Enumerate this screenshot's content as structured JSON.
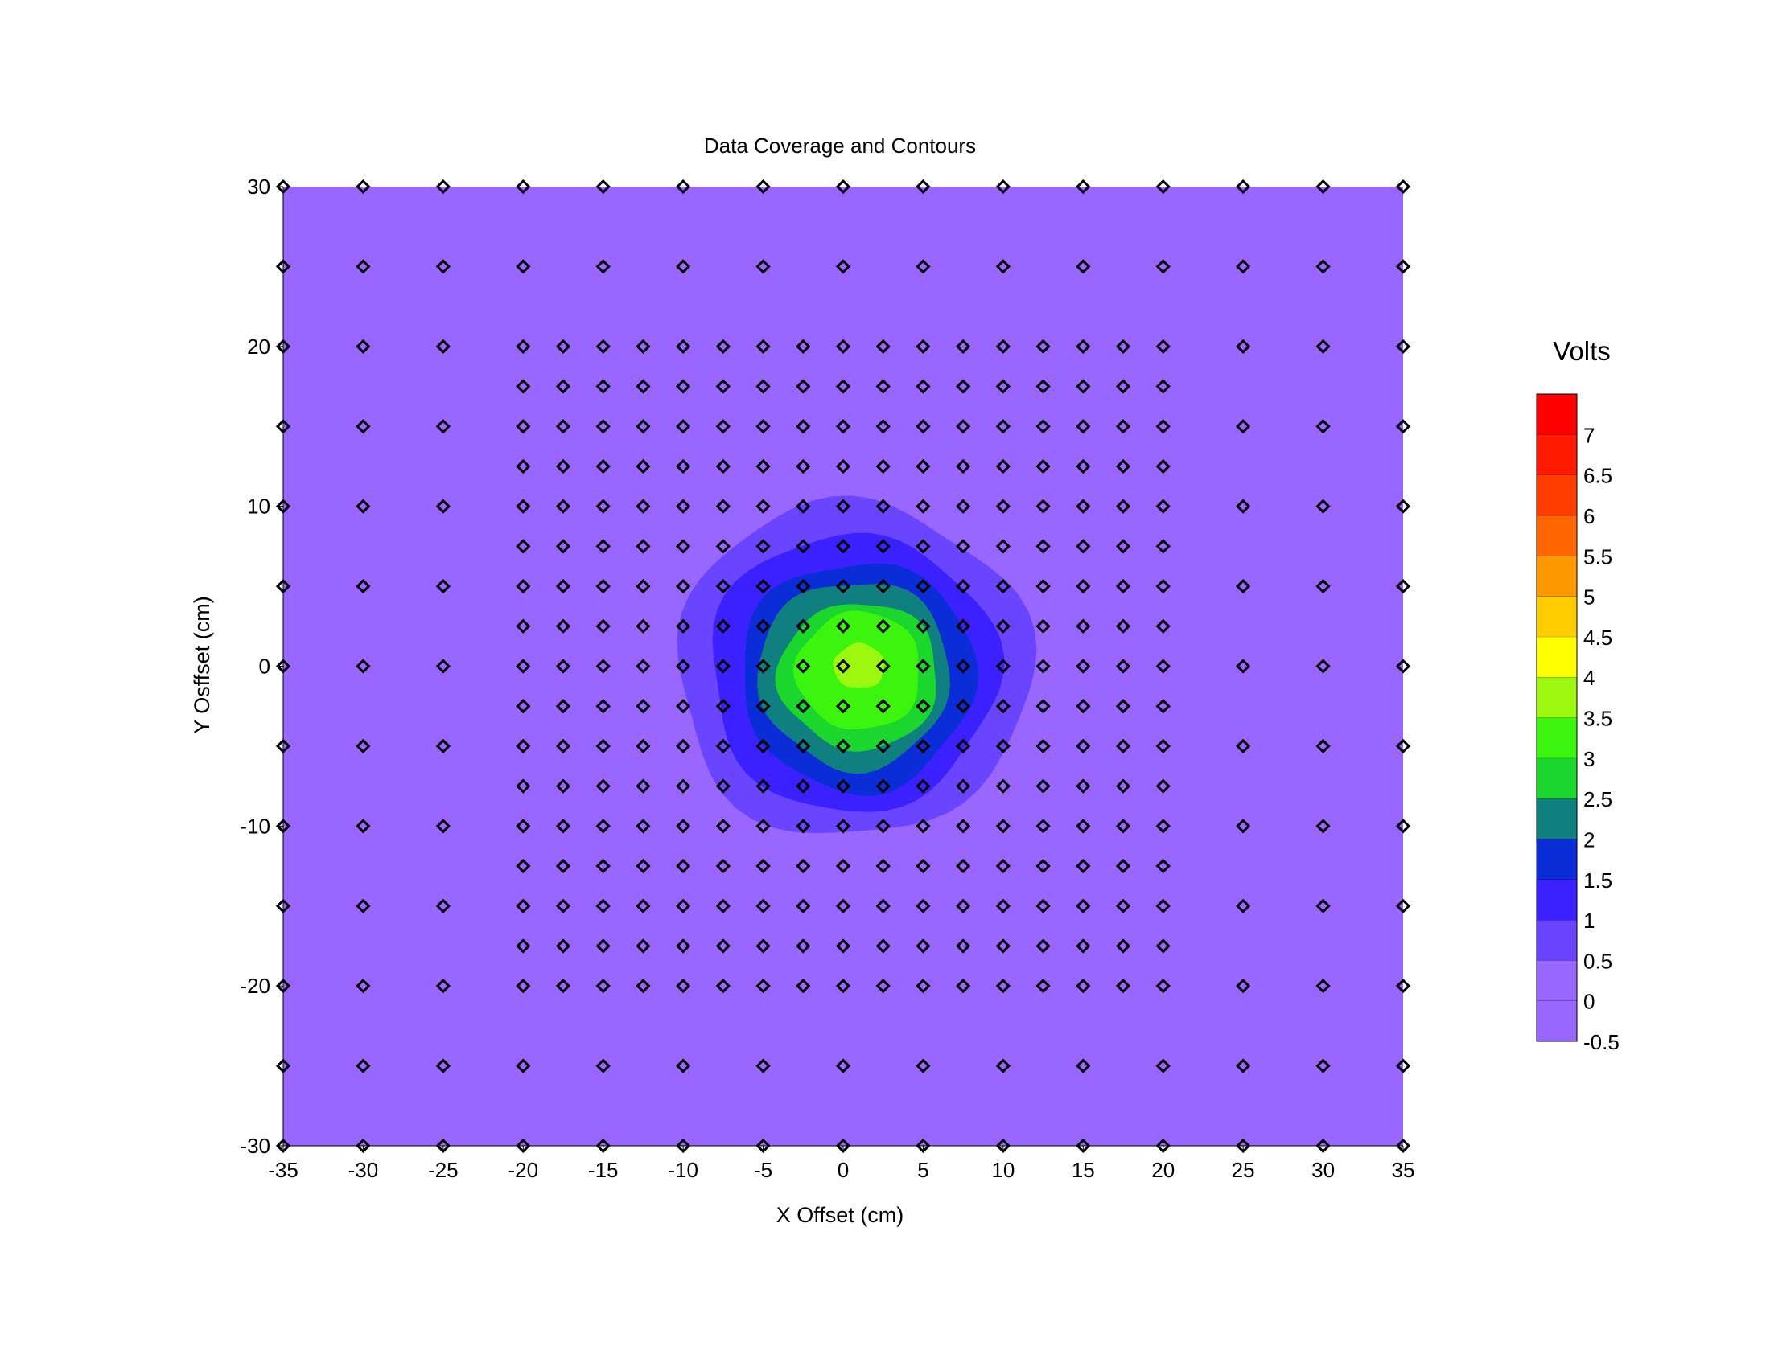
{
  "chart_data": {
    "type": "contour",
    "title": "Data Coverage and Contours",
    "xlabel": "X Offset (cm)",
    "ylabel": "Y Osffset (cm)",
    "xlim": [
      -35,
      35
    ],
    "ylim": [
      -30,
      30
    ],
    "xticks": [
      -35,
      -30,
      -25,
      -20,
      -15,
      -10,
      -5,
      0,
      5,
      10,
      15,
      20,
      25,
      30,
      35
    ],
    "yticks": [
      -30,
      -20,
      -10,
      0,
      10,
      20,
      30
    ],
    "colorbar": {
      "title": "Volts",
      "levels": [
        -0.5,
        0,
        0.5,
        1,
        1.5,
        2,
        2.5,
        3,
        3.5,
        4,
        4.5,
        5,
        5.5,
        6,
        6.5,
        7,
        7.5
      ],
      "labels": [
        "-0.5",
        "0",
        "0.5",
        "1",
        "1.5",
        "2",
        "2.5",
        "3",
        "3.5",
        "4",
        "4.5",
        "5",
        "5.5",
        "6",
        "6.5",
        "7"
      ],
      "colors": [
        "#9966ff",
        "#9966ff",
        "#6a45ff",
        "#3b21ff",
        "#0a2dd8",
        "#0f7f7f",
        "#1bd62c",
        "#3cf50f",
        "#9cf80f",
        "#ffff00",
        "#ffcc00",
        "#ff9900",
        "#ff6600",
        "#ff3d00",
        "#ff1a00",
        "#ff0000"
      ]
    },
    "background_value": 0,
    "contour_fills": [
      {
        "level": 0.5,
        "color": "#6a45ff",
        "rx": 11.1,
        "ry": 10.5,
        "cx": 0.6,
        "cy": -0.2
      },
      {
        "level": 1,
        "color": "#3b21ff",
        "rx": 9.0,
        "ry": 8.7,
        "cx": 0.6,
        "cy": -0.4
      },
      {
        "level": 1.5,
        "color": "#0a2dd8",
        "rx": 7.3,
        "ry": 7.2,
        "cx": 0.9,
        "cy": -0.6
      },
      {
        "level": 2,
        "color": "#0f7f7f",
        "rx": 6.0,
        "ry": 5.9,
        "cx": 0.7,
        "cy": -0.5
      },
      {
        "level": 2.5,
        "color": "#1bd62c",
        "rx": 5.0,
        "ry": 4.6,
        "cx": 1.0,
        "cy": -0.6
      },
      {
        "level": 3,
        "color": "#3cf50f",
        "rx": 3.9,
        "ry": 3.7,
        "cx": 1.0,
        "cy": -0.3
      },
      {
        "level": 3.5,
        "color": "#9cf80f",
        "rx": 1.6,
        "ry": 1.4,
        "cx": 1.0,
        "cy": 0.0
      }
    ],
    "sample_points": {
      "coarse_x": [
        -35,
        -30,
        -25,
        -20,
        -15,
        -10,
        -5,
        0,
        5,
        10,
        15,
        20,
        25,
        30,
        35
      ],
      "coarse_y": [
        -30,
        -25,
        -20,
        -15,
        -10,
        -5,
        0,
        5,
        10,
        15,
        20,
        25,
        30
      ],
      "fine_x": [
        -20,
        -17.5,
        -15,
        -12.5,
        -10,
        -7.5,
        -5,
        -2.5,
        0,
        2.5,
        5,
        7.5,
        10,
        12.5,
        15,
        17.5,
        20
      ],
      "fine_y": [
        -20,
        -17.5,
        -15,
        -12.5,
        -10,
        -7.5,
        -5,
        -2.5,
        0,
        2.5,
        5,
        7.5,
        10,
        12.5,
        15,
        17.5,
        20
      ]
    },
    "grid": false
  }
}
